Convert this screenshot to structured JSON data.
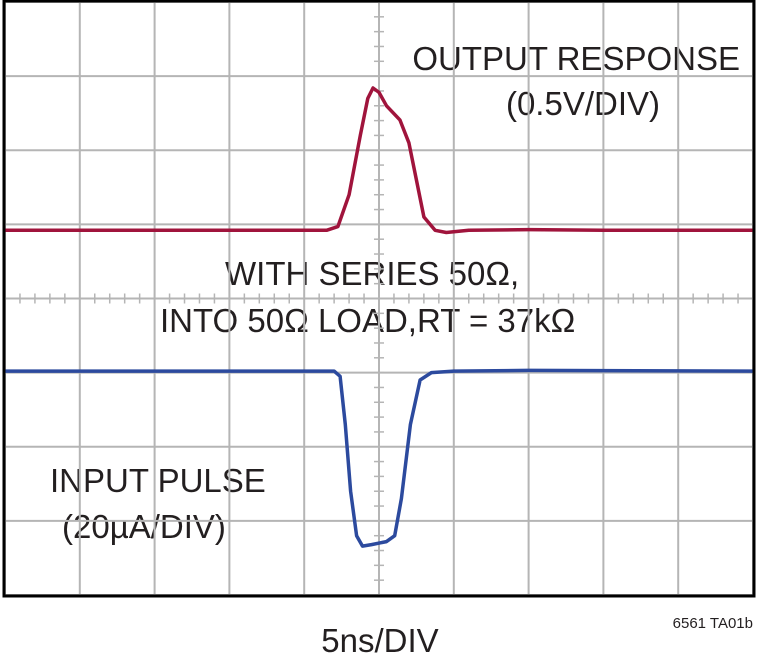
{
  "chart_data": {
    "type": "line",
    "x_label": "5ns/DIV",
    "figure_id": "6561 TA01b",
    "annotations": [
      "OUTPUT RESPONSE",
      "(0.5V/DIV)",
      "WITH SERIES 50Ω,",
      "INTO 50Ω LOAD,RT = 37kΩ",
      "INPUT PULSE",
      "(20µA/DIV)"
    ],
    "xlim": [
      0,
      10
    ],
    "ylim": [
      0,
      8
    ],
    "xticks": [
      0,
      1,
      2,
      3,
      4,
      5,
      6,
      7,
      8,
      9,
      10
    ],
    "yticks": [
      0,
      1,
      2,
      3,
      4,
      5,
      6,
      7,
      8
    ],
    "grid": true,
    "series": [
      {
        "name": "OUTPUT RESPONSE",
        "color": "#a0143c",
        "x": [
          0,
          4.3,
          4.45,
          4.6,
          4.75,
          4.85,
          4.92,
          5.0,
          5.1,
          5.28,
          5.4,
          5.5,
          5.6,
          5.75,
          5.9,
          6.2,
          7,
          8,
          10
        ],
        "values": [
          4.92,
          4.92,
          4.97,
          5.4,
          6.2,
          6.7,
          6.84,
          6.78,
          6.6,
          6.41,
          6.1,
          5.6,
          5.1,
          4.92,
          4.89,
          4.92,
          4.93,
          4.92,
          4.92
        ]
      },
      {
        "name": "INPUT PULSE",
        "color": "#2c4a9e",
        "x": [
          0,
          4.4,
          4.48,
          4.55,
          4.62,
          4.7,
          4.78,
          4.9,
          5.1,
          5.21,
          5.3,
          5.42,
          5.55,
          5.7,
          6.0,
          7,
          10
        ],
        "values": [
          3.02,
          3.02,
          2.95,
          2.3,
          1.4,
          0.8,
          0.66,
          0.68,
          0.72,
          0.8,
          1.3,
          2.3,
          2.9,
          3.0,
          3.02,
          3.03,
          3.02
        ]
      }
    ]
  }
}
